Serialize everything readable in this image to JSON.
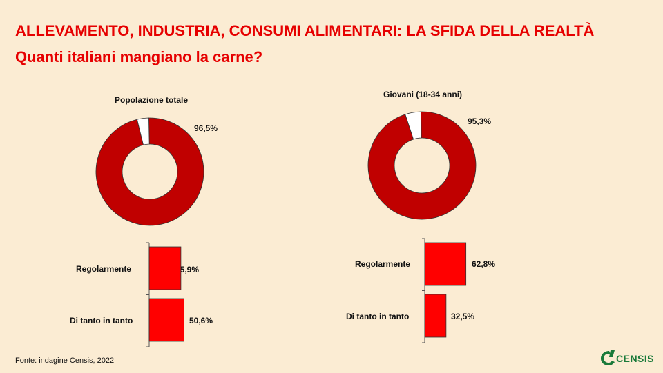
{
  "header": {
    "title": "ALLEVAMENTO, INDUSTRIA, CONSUMI ALIMENTARI: LA SFIDA DELLA REALTÀ",
    "subtitle": "Quanti italiani mangiano la carne?"
  },
  "footer": {
    "source": "Fonte: indagine Censis, 2022",
    "logo_text": "CENSIS"
  },
  "colors": {
    "title": "#e60000",
    "donut_main": "#c00000",
    "donut_rest": "#ffffff",
    "bar_fill": "#ff0000",
    "background": "#fbecd3",
    "logo": "#1a7a3a"
  },
  "chart_data": [
    {
      "type": "pie",
      "title": "Popolazione totale",
      "values": [
        96.5,
        3.5
      ],
      "labels": [
        "96,5%",
        ""
      ]
    },
    {
      "type": "bar",
      "orientation": "horizontal",
      "categories": [
        "Regolarmente",
        "Di tanto in tanto"
      ],
      "values": [
        45.9,
        50.6
      ],
      "labels": [
        "45,9%",
        "50,6%"
      ]
    },
    {
      "type": "pie",
      "title": "Giovani (18-34 anni)",
      "values": [
        95.3,
        4.7
      ],
      "labels": [
        "95,3%",
        ""
      ]
    },
    {
      "type": "bar",
      "orientation": "horizontal",
      "categories": [
        "Regolarmente",
        "Di tanto in tanto"
      ],
      "values": [
        62.8,
        32.5
      ],
      "labels": [
        "62,8%",
        "32,5%"
      ]
    }
  ]
}
